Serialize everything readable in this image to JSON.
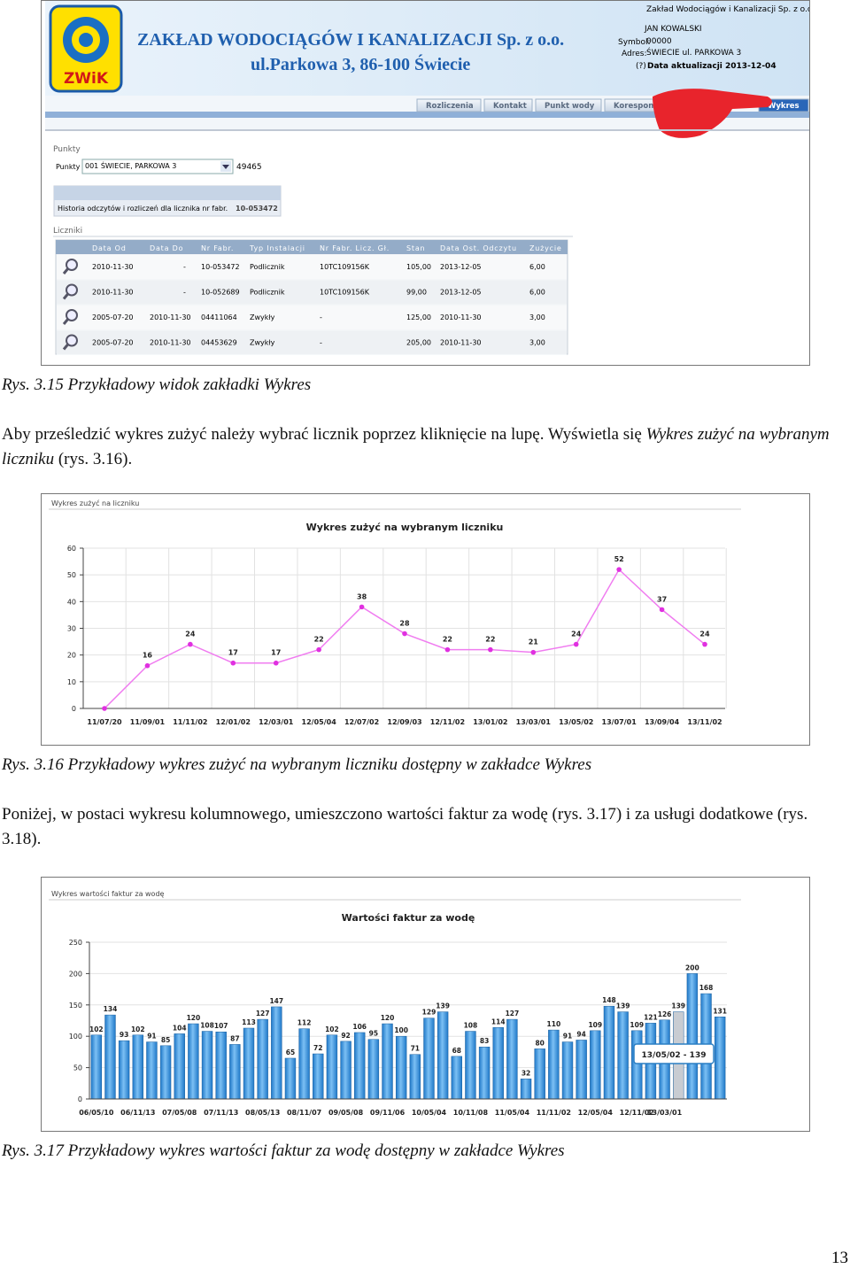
{
  "screenshot": {
    "company": "ZAKŁAD WODOCIĄGÓW I KANALIZACJI Sp. z o.o.",
    "address": "ul.Parkowa 3, 86-100 Świecie",
    "logo": "ZWiK",
    "info": {
      "company": "Zakład Wodociągów i Kanalizacji Sp. z o.o.",
      "user": "JAN KOWALSKI",
      "symbol_label": "Symbol:",
      "symbol": "00000",
      "address_label": "Adres:",
      "address": "ŚWIECIE ul. PARKOWA 3",
      "help": "(?)",
      "updated": "Data aktualizacji 2013-12-04"
    },
    "tabs": [
      "Rozliczenia",
      "Kontakt",
      "Punkt wody",
      "Korespon",
      "Wykres"
    ],
    "points_section": "Punkty",
    "points_label": "Punkty",
    "points_select": "001 ŚWIECIE, PARKOWA 3",
    "points_code": "49465",
    "history_label": "Historia odczytów i rozliczeń dla licznika nr fabr.",
    "history_number": "10-053472",
    "meters_section": "Liczniki",
    "table": {
      "headers": [
        "Data Od",
        "Data Do",
        "Nr Fabr.",
        "Typ Instalacji",
        "Nr Fabr. Licz. Gł.",
        "Stan",
        "Data Ost. Odczytu",
        "Zużycie"
      ],
      "rows": [
        [
          "2010-11-30",
          "-",
          "10-053472",
          "Podlicznik",
          "10TC109156K",
          "105,00",
          "2013-12-05",
          "6,00"
        ],
        [
          "2010-11-30",
          "-",
          "10-052689",
          "Podlicznik",
          "10TC109156K",
          "99,00",
          "2013-12-05",
          "6,00"
        ],
        [
          "2005-07-20",
          "2010-11-30",
          "04411064",
          "Zwykły",
          "-",
          "125,00",
          "2010-11-30",
          "3,00"
        ],
        [
          "2005-07-20",
          "2010-11-30",
          "04453629",
          "Zwykły",
          "-",
          "205,00",
          "2010-11-30",
          "3,00"
        ]
      ]
    }
  },
  "captions": [
    "Rys. 3.15 Przykładowy widok zakładki Wykres",
    "Rys. 3.16 Przykładowy wykres zużyć na wybranym liczniku dostępny w zakładce Wykres",
    "Rys. 3.17 Przykładowy wykres wartości faktur za wodę dostępny w zakładce Wykres"
  ],
  "paragraphs": [
    [
      "Aby prześledzić wykres zużyć należy wybrać licznik poprzez kliknięcie na lupę. Wyświetla się ",
      "Wykres zużyć na wybranym liczniku",
      " (rys. 3.16)."
    ],
    [
      "Poniżej, w postaci wykresu kolumnowego, umieszczono wartości faktur za wodę (rys. 3.17) i za usługi dodatkowe (rys. 3.18)."
    ]
  ],
  "chart_data": [
    {
      "type": "line",
      "panel_title": "Wykres zużyć na liczniku",
      "title": "Wykres zużyć na wybranym liczniku",
      "categories": [
        "11/07/20",
        "11/09/01",
        "11/11/02",
        "12/01/02",
        "12/03/01",
        "12/05/04",
        "12/07/02",
        "12/09/03",
        "12/11/02",
        "13/01/02",
        "13/03/01",
        "13/05/02",
        "13/07/01",
        "13/09/04",
        "13/11/02"
      ],
      "values": [
        0,
        16,
        24,
        17,
        17,
        22,
        38,
        28,
        22,
        22,
        21,
        24,
        52,
        37,
        24
      ],
      "value_labels": [
        null,
        "16",
        "24",
        "17",
        "17",
        "22",
        "38",
        "28",
        "22",
        "22",
        "21",
        "24",
        "52",
        "37",
        "24"
      ],
      "color": "#f07cf0",
      "marker_color": "#e030e0",
      "ylim": [
        0,
        60
      ],
      "yticks": [
        0,
        10,
        20,
        30,
        40,
        50,
        60
      ],
      "grid": true
    },
    {
      "type": "bar",
      "panel_title": "Wykres wartości faktur za wodę",
      "title": "Wartości faktur za wodę",
      "categories": [
        "06/05/10",
        null,
        null,
        "06/11/13",
        null,
        null,
        "07/05/08",
        null,
        null,
        "07/11/13",
        null,
        null,
        "08/05/13",
        null,
        null,
        "08/11/07",
        null,
        null,
        "09/05/08",
        null,
        null,
        "09/11/06",
        null,
        null,
        "10/05/04",
        null,
        null,
        "10/11/08",
        null,
        null,
        "11/05/04",
        null,
        null,
        "11/11/02",
        null,
        null,
        "12/05/04",
        null,
        null,
        "12/11/02",
        null,
        "13/03/01",
        null,
        null,
        null,
        null
      ],
      "values": [
        102,
        134,
        93,
        102,
        91,
        85,
        104,
        120,
        108,
        107,
        87,
        113,
        127,
        147,
        65,
        112,
        72,
        102,
        92,
        106,
        95,
        120,
        100,
        71,
        129,
        139,
        68,
        108,
        83,
        114,
        127,
        32,
        80,
        110,
        91,
        94,
        109,
        148,
        139,
        109,
        121,
        126,
        139,
        200,
        168,
        131
      ],
      "color": "#1f78c8",
      "highlight_color": "#c8ccd2",
      "highlight_index": 42,
      "tooltip": "13/05/02 - 139",
      "ylim": [
        0,
        250
      ],
      "yticks": [
        0,
        50,
        100,
        150,
        200,
        250
      ],
      "grid": true
    }
  ],
  "page_number": "13"
}
